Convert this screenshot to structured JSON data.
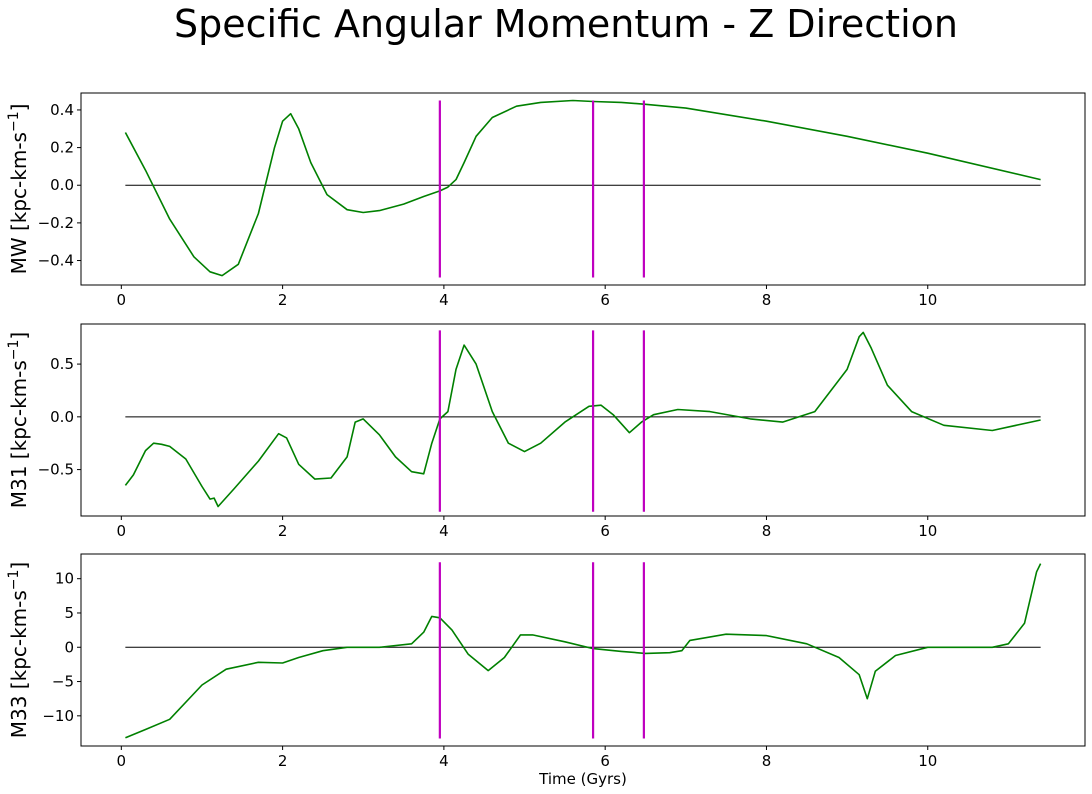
{
  "title": "Specific Angular Momentum - Z Direction",
  "chart_data": [
    {
      "type": "line",
      "ylabel": "MW [kpc-km-s",
      "ylabel_sup": "−1",
      "ylabel_end": "]",
      "xlabel": "",
      "xlim": [
        -0.5,
        11.95
      ],
      "ylim": [
        -0.53,
        0.49
      ],
      "xticks": [
        0,
        2,
        4,
        6,
        8,
        10
      ],
      "yticks": [
        -0.4,
        -0.2,
        0.0,
        0.2,
        0.4
      ],
      "ytick_labels": [
        "−0.4",
        "−0.2",
        "0.0",
        "0.2",
        "0.4"
      ],
      "vlines": [
        3.95,
        5.85,
        6.48
      ],
      "vline_range": [
        -0.49,
        0.45
      ],
      "zero_line": [
        0.05,
        11.4
      ],
      "series": [
        {
          "color": "#008000",
          "x": [
            0.05,
            0.3,
            0.6,
            0.9,
            1.1,
            1.25,
            1.45,
            1.7,
            1.9,
            2.0,
            2.1,
            2.2,
            2.35,
            2.55,
            2.8,
            3.0,
            3.2,
            3.5,
            3.75,
            3.95,
            4.05,
            4.15,
            4.25,
            4.4,
            4.6,
            4.9,
            5.2,
            5.6,
            5.85,
            6.2,
            6.5,
            7.0,
            8.0,
            9.0,
            10.0,
            11.4
          ],
          "y": [
            0.28,
            0.08,
            -0.18,
            -0.38,
            -0.46,
            -0.48,
            -0.42,
            -0.15,
            0.2,
            0.34,
            0.38,
            0.3,
            0.12,
            -0.05,
            -0.13,
            -0.145,
            -0.135,
            -0.1,
            -0.06,
            -0.03,
            -0.01,
            0.03,
            0.12,
            0.26,
            0.36,
            0.42,
            0.44,
            0.45,
            0.445,
            0.44,
            0.43,
            0.41,
            0.34,
            0.26,
            0.17,
            0.03
          ]
        }
      ]
    },
    {
      "type": "line",
      "ylabel": "M31 [kpc-km-s",
      "ylabel_sup": "−1",
      "ylabel_end": "]",
      "xlabel": "",
      "xlim": [
        -0.5,
        11.95
      ],
      "ylim": [
        -0.94,
        0.88
      ],
      "xticks": [
        0,
        2,
        4,
        6,
        8,
        10
      ],
      "yticks": [
        -0.5,
        0.0,
        0.5
      ],
      "ytick_labels": [
        "−0.5",
        "0.0",
        "0.5"
      ],
      "vlines": [
        3.95,
        5.85,
        6.48
      ],
      "vline_range": [
        -0.9,
        0.82
      ],
      "zero_line": [
        0.05,
        11.4
      ],
      "series": [
        {
          "color": "#008000",
          "x": [
            0.05,
            0.15,
            0.3,
            0.4,
            0.5,
            0.6,
            0.8,
            1.0,
            1.1,
            1.15,
            1.2,
            1.4,
            1.7,
            1.95,
            2.05,
            2.2,
            2.4,
            2.6,
            2.8,
            2.9,
            3.0,
            3.2,
            3.4,
            3.6,
            3.75,
            3.85,
            3.95,
            4.05,
            4.15,
            4.25,
            4.4,
            4.6,
            4.8,
            5.0,
            5.2,
            5.5,
            5.8,
            5.95,
            6.1,
            6.3,
            6.45,
            6.6,
            6.9,
            7.3,
            7.8,
            8.2,
            8.6,
            9.0,
            9.15,
            9.2,
            9.3,
            9.5,
            9.8,
            10.2,
            10.8,
            11.4
          ],
          "y": [
            -0.65,
            -0.55,
            -0.32,
            -0.25,
            -0.26,
            -0.28,
            -0.4,
            -0.66,
            -0.78,
            -0.77,
            -0.85,
            -0.68,
            -0.42,
            -0.16,
            -0.2,
            -0.45,
            -0.59,
            -0.58,
            -0.38,
            -0.05,
            -0.02,
            -0.17,
            -0.38,
            -0.52,
            -0.54,
            -0.25,
            -0.02,
            0.05,
            0.45,
            0.68,
            0.5,
            0.05,
            -0.25,
            -0.33,
            -0.25,
            -0.05,
            0.1,
            0.11,
            0.02,
            -0.15,
            -0.05,
            0.02,
            0.07,
            0.05,
            -0.02,
            -0.05,
            0.05,
            0.45,
            0.76,
            0.8,
            0.65,
            0.3,
            0.05,
            -0.08,
            -0.13,
            -0.03
          ]
        }
      ]
    },
    {
      "type": "line",
      "ylabel": "M33 [kpc-km-s",
      "ylabel_sup": "−1",
      "ylabel_end": "]",
      "xlabel": "Time (Gyrs)",
      "xlim": [
        -0.5,
        11.95
      ],
      "ylim": [
        -14.4,
        13.6
      ],
      "xticks": [
        0,
        2,
        4,
        6,
        8,
        10
      ],
      "yticks": [
        -10,
        -5,
        0,
        5,
        10
      ],
      "ytick_labels": [
        "−10",
        "−5",
        "0",
        "5",
        "10"
      ],
      "vlines": [
        3.95,
        5.85,
        6.48
      ],
      "vline_range": [
        -13.3,
        12.4
      ],
      "zero_line": [
        0.05,
        11.4
      ],
      "series": [
        {
          "color": "#008000",
          "x": [
            0.05,
            0.3,
            0.6,
            1.0,
            1.3,
            1.7,
            2.0,
            2.2,
            2.5,
            2.8,
            3.2,
            3.6,
            3.75,
            3.85,
            3.95,
            4.1,
            4.3,
            4.55,
            4.75,
            4.95,
            5.1,
            5.5,
            5.85,
            6.2,
            6.5,
            6.8,
            6.95,
            7.05,
            7.5,
            8.0,
            8.5,
            8.9,
            9.15,
            9.25,
            9.35,
            9.6,
            10.0,
            10.4,
            10.8,
            11.0,
            11.2,
            11.35,
            11.4
          ],
          "y": [
            -13.2,
            -12.0,
            -10.5,
            -5.5,
            -3.2,
            -2.2,
            -2.3,
            -1.5,
            -0.5,
            0.0,
            0.0,
            0.5,
            2.2,
            4.5,
            4.3,
            2.5,
            -1.0,
            -3.4,
            -1.5,
            1.8,
            1.8,
            0.8,
            -0.2,
            -0.6,
            -0.9,
            -0.8,
            -0.5,
            1.0,
            1.9,
            1.7,
            0.5,
            -1.5,
            -4.0,
            -7.5,
            -3.5,
            -1.2,
            0.0,
            0.0,
            0.0,
            0.5,
            3.5,
            11.0,
            12.2
          ]
        }
      ]
    }
  ]
}
